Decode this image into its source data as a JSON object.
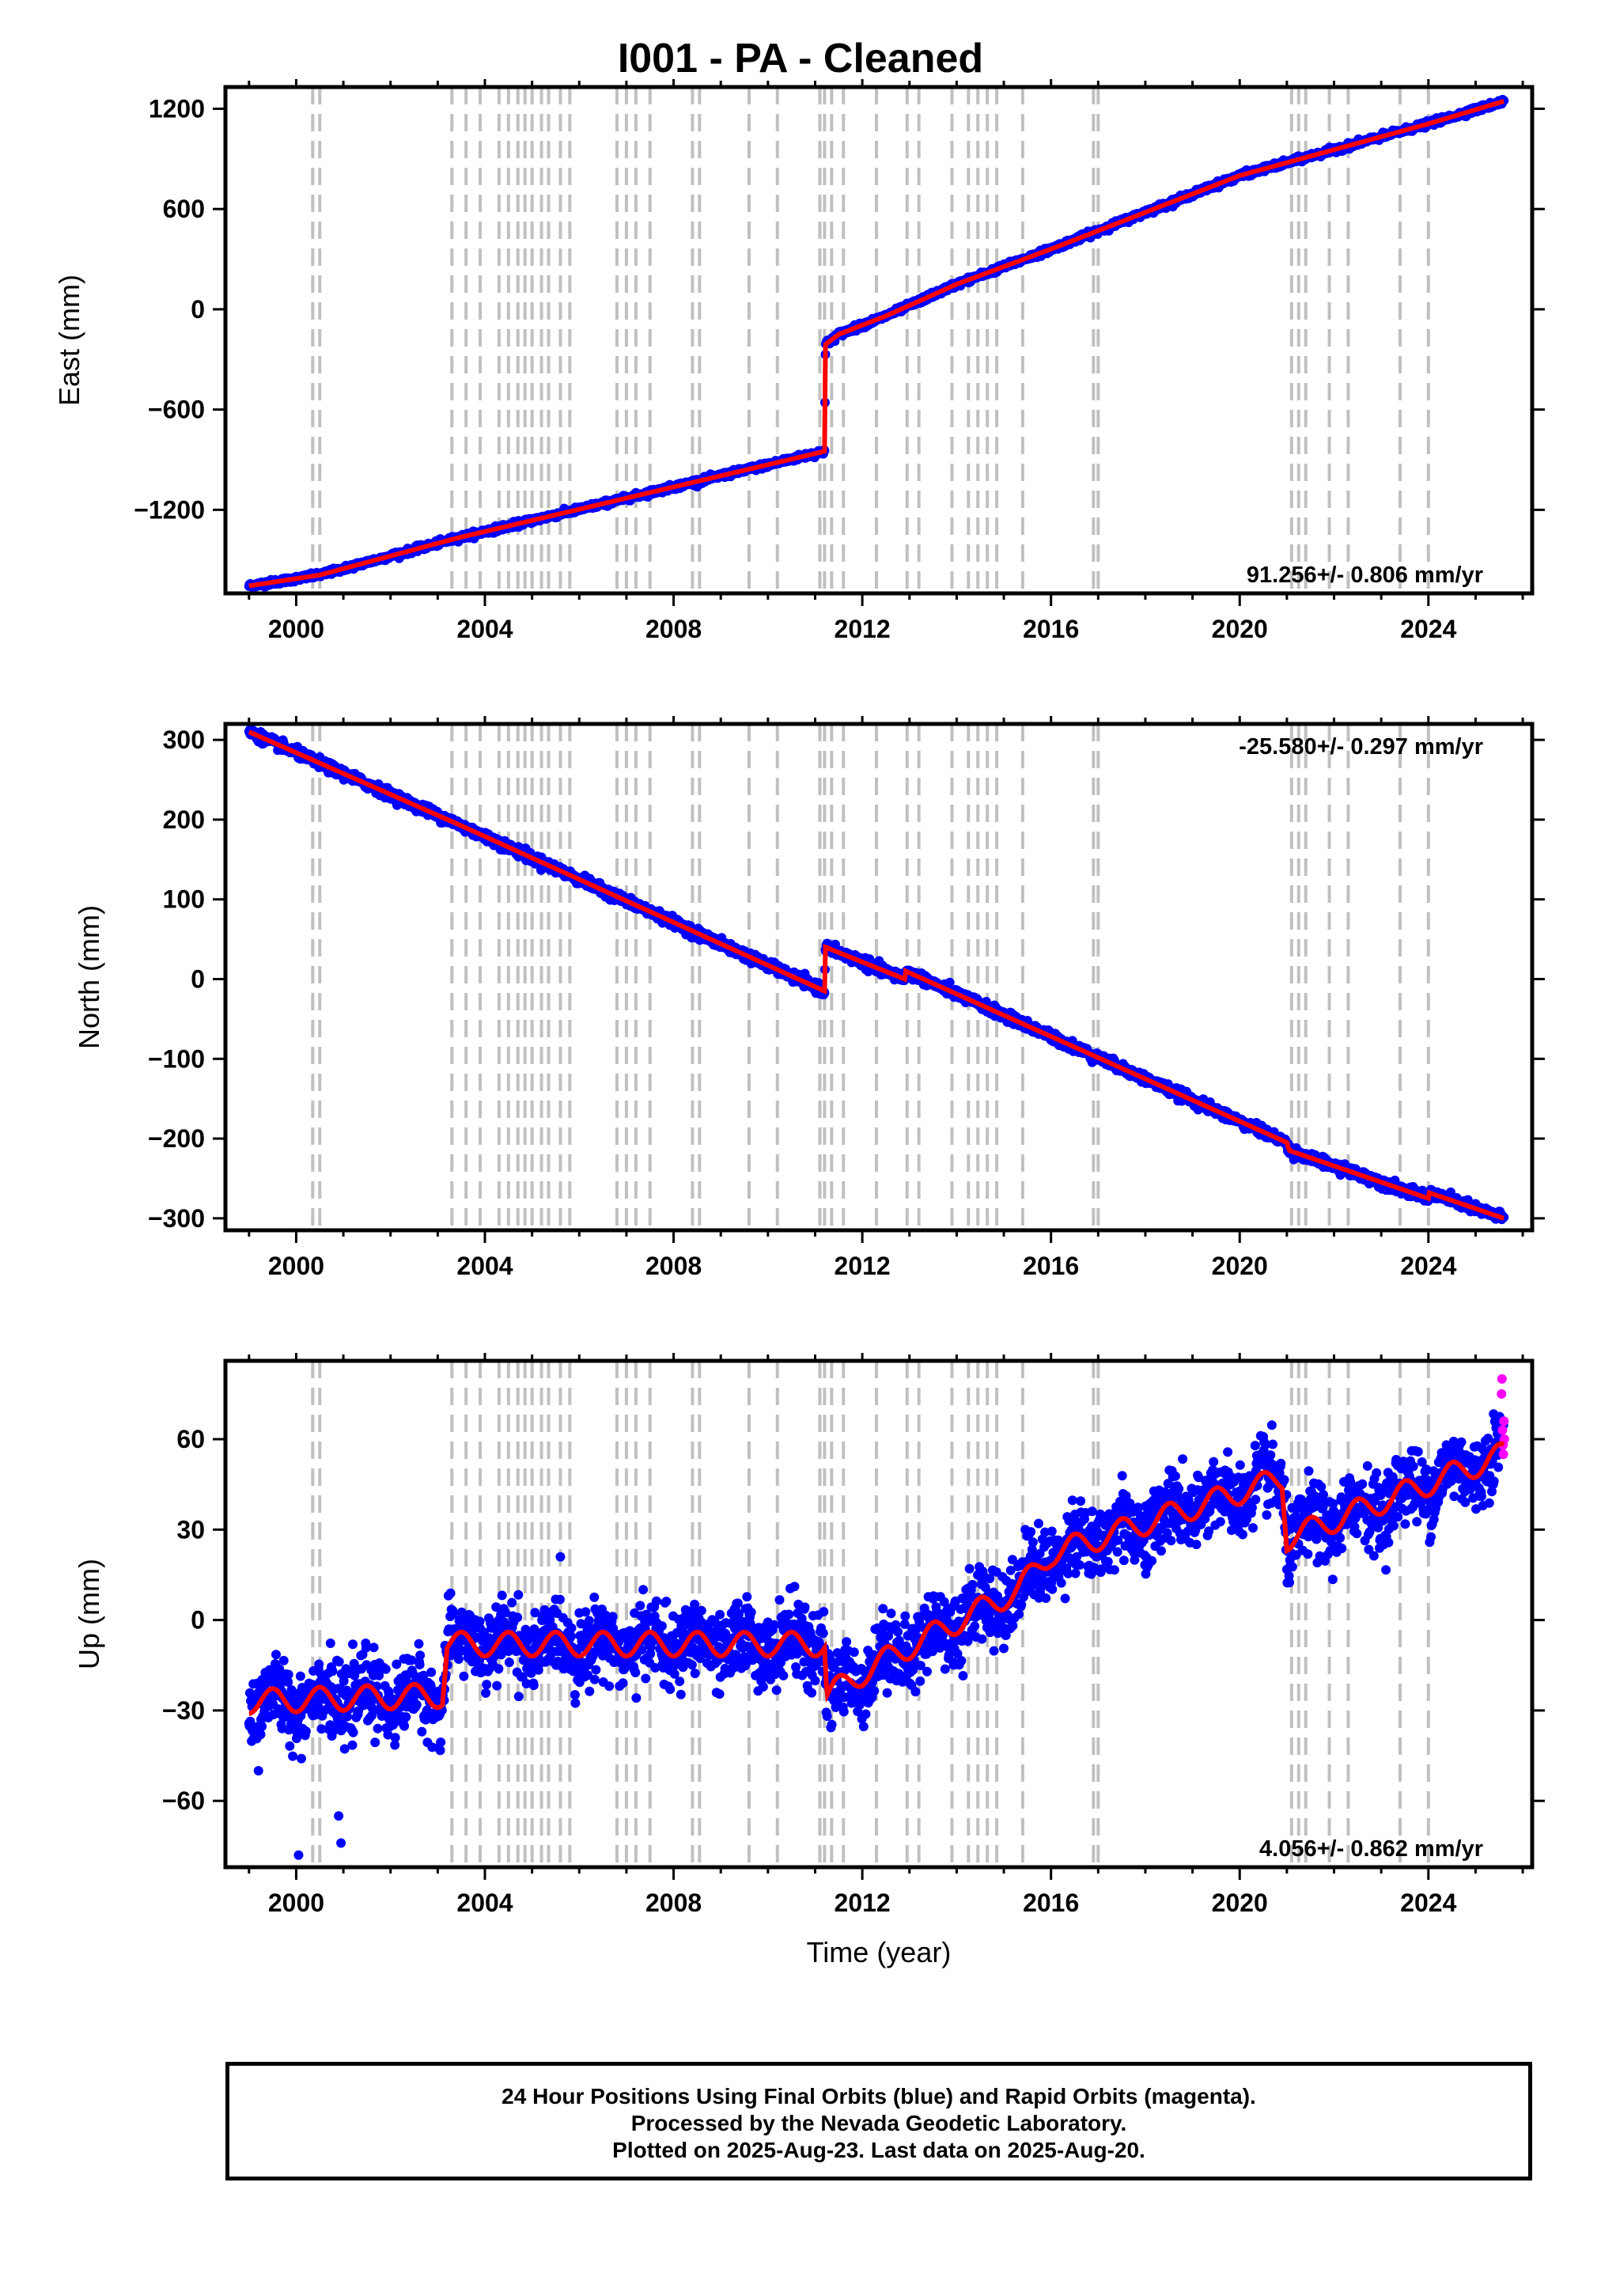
{
  "title": "I001  - PA - Cleaned",
  "colors": {
    "final_orbits": "#0000ff",
    "rapid_orbits": "#ff00ff",
    "model": "#ff0000",
    "event_lines": "#c0c0c0"
  },
  "footer": {
    "line1": "24 Hour Positions Using Final Orbits (blue) and Rapid Orbits (magenta).",
    "line2": "Processed by the Nevada Geodetic Laboratory.",
    "line3": "Plotted on 2025-Aug-23. Last data on 2025-Aug-20."
  },
  "chart_data": [
    {
      "type": "scatter",
      "name": "east",
      "ylabel": "East (mm)",
      "xlabel": "",
      "xlim": [
        1998.5,
        2026.2
      ],
      "ylim": [
        -1700,
        1330
      ],
      "xticks": [
        2000,
        2004,
        2008,
        2012,
        2016,
        2020,
        2024
      ],
      "yticks": [
        -1200,
        -600,
        0,
        600,
        1200
      ],
      "rate_label": "91.256+/- 0.806 mm/yr",
      "rate_position": "bottom-right",
      "noise_mm": 8,
      "trend_knots": [
        [
          1999.0,
          -1655
        ],
        [
          2000.5,
          -1590
        ],
        [
          2003.4,
          -1370
        ],
        [
          2011.2,
          -850
        ],
        [
          2011.22,
          -210
        ],
        [
          2011.5,
          -150
        ],
        [
          2012.5,
          -40
        ],
        [
          2014.0,
          150
        ],
        [
          2016.0,
          360
        ],
        [
          2020.0,
          800
        ],
        [
          2024.0,
          1110
        ],
        [
          2025.6,
          1245
        ]
      ]
    },
    {
      "type": "scatter",
      "name": "north",
      "ylabel": "North (mm)",
      "xlabel": "",
      "xlim": [
        1998.5,
        2026.2
      ],
      "ylim": [
        -315,
        320
      ],
      "xticks": [
        2000,
        2004,
        2008,
        2012,
        2016,
        2020,
        2024
      ],
      "yticks": [
        -300,
        -200,
        -100,
        0,
        100,
        200,
        300
      ],
      "rate_label": "-25.580+/- 0.297 mm/yr",
      "rate_position": "top-right",
      "noise_mm": 3,
      "trend_knots": [
        [
          1999.0,
          310
        ],
        [
          2003.4,
          195
        ],
        [
          2011.2,
          -15
        ],
        [
          2011.22,
          40
        ],
        [
          2012.9,
          0
        ],
        [
          2012.92,
          10
        ],
        [
          2021.0,
          -205
        ],
        [
          2021.05,
          -215
        ],
        [
          2024.0,
          -275
        ],
        [
          2024.02,
          -268
        ],
        [
          2025.6,
          -300
        ]
      ]
    },
    {
      "type": "scatter",
      "name": "up",
      "ylabel": "Up (mm)",
      "xlabel": "Time (year)",
      "xlim": [
        1998.5,
        2026.2
      ],
      "ylim": [
        -82,
        86
      ],
      "xticks": [
        2000,
        2004,
        2008,
        2012,
        2016,
        2020,
        2024
      ],
      "yticks": [
        -60,
        -30,
        0,
        30,
        60
      ],
      "rate_label": "4.056+/- 0.862 mm/yr",
      "rate_position": "bottom-right",
      "noise_mm": 6,
      "seasonal_amplitude_mm": 4,
      "trend_knots": [
        [
          1999.0,
          -27
        ],
        [
          2003.1,
          -25
        ],
        [
          2003.2,
          -8
        ],
        [
          2011.2,
          -8
        ],
        [
          2011.25,
          -25
        ],
        [
          2012.5,
          -13
        ],
        [
          2015.3,
          10
        ],
        [
          2016.0,
          22
        ],
        [
          2020.9,
          47
        ],
        [
          2021.0,
          27
        ],
        [
          2025.6,
          55
        ]
      ],
      "rapid_points": [
        [
          2025.55,
          75
        ],
        [
          2025.56,
          80
        ],
        [
          2025.57,
          63
        ],
        [
          2025.58,
          58
        ],
        [
          2025.59,
          55
        ],
        [
          2025.6,
          66
        ],
        [
          2025.61,
          60
        ]
      ],
      "outliers": [
        [
          2000.05,
          -78
        ],
        [
          2000.9,
          -65
        ],
        [
          2000.95,
          -74
        ],
        [
          1999.2,
          -50
        ]
      ]
    }
  ],
  "event_lines": [
    2000.35,
    2000.5,
    2003.3,
    2003.6,
    2003.9,
    2004.3,
    2004.5,
    2004.7,
    2004.85,
    2005.0,
    2005.2,
    2005.35,
    2005.6,
    2005.8,
    2006.8,
    2007.0,
    2007.2,
    2007.5,
    2008.4,
    2008.55,
    2009.6,
    2010.2,
    2011.1,
    2011.2,
    2011.35,
    2011.6,
    2012.3,
    2012.95,
    2013.2,
    2013.9,
    2014.25,
    2014.45,
    2014.65,
    2014.85,
    2015.4,
    2016.9,
    2017.0,
    2021.1,
    2021.25,
    2021.4,
    2021.9,
    2022.3,
    2023.4,
    2024.0
  ]
}
